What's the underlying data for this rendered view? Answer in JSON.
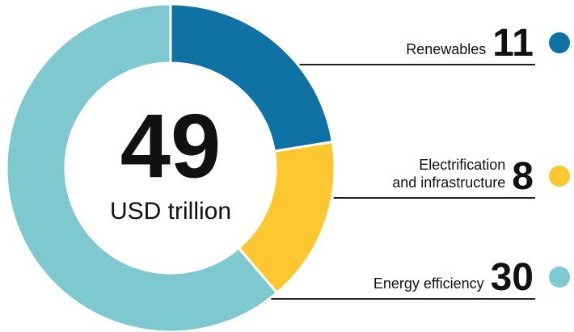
{
  "chart_data": {
    "type": "donut",
    "total": 49,
    "total_label": "USD trillion",
    "categories": [
      "Renewables",
      "Electrification\nand infrastructure",
      "Energy efficiency"
    ],
    "values": [
      11,
      8,
      30
    ],
    "colors": [
      "#0e72a4",
      "#fdc82f",
      "#7ec8d0"
    ]
  }
}
